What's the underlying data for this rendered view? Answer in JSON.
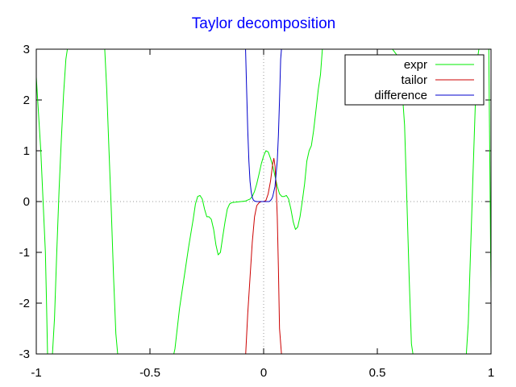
{
  "chart_data": {
    "type": "line",
    "title": "Taylor decomposition",
    "xlabel": "",
    "ylabel": "",
    "xlim": [
      -1,
      1
    ],
    "ylim": [
      -3,
      3
    ],
    "x_ticks": [
      -1,
      -0.5,
      0,
      0.5,
      1
    ],
    "x_tick_labels": [
      "-1",
      "-0.5",
      "0",
      "0.5",
      "1"
    ],
    "y_ticks": [
      -3,
      -2,
      -1,
      0,
      1,
      2,
      3
    ],
    "y_tick_labels": [
      "-3",
      "-2",
      "-1",
      "0",
      "1",
      "2",
      "3"
    ],
    "zero_axes": "dotted",
    "legend_position": "top-right",
    "series": [
      {
        "name": "expr",
        "color": "#00ee00",
        "x": [
          -1.0,
          -0.98,
          -0.96,
          -0.955,
          -0.95,
          -0.94,
          -0.93,
          -0.92,
          -0.91,
          -0.9,
          -0.89,
          -0.88,
          -0.87,
          -0.86,
          -0.84,
          -0.82,
          -0.8,
          -0.78,
          -0.76,
          -0.74,
          -0.72,
          -0.7,
          -0.69,
          -0.68,
          -0.67,
          -0.66,
          -0.65,
          -0.64,
          -0.6,
          -0.5,
          -0.4,
          -0.39,
          -0.37,
          -0.35,
          -0.33,
          -0.31,
          -0.3,
          -0.29,
          -0.28,
          -0.27,
          -0.26,
          -0.25,
          -0.24,
          -0.23,
          -0.22,
          -0.21,
          -0.2,
          -0.19,
          -0.18,
          -0.17,
          -0.16,
          -0.15,
          -0.14,
          -0.12,
          -0.1,
          -0.08,
          -0.07,
          -0.06,
          -0.05,
          -0.04,
          -0.03,
          -0.02,
          -0.01,
          0.0,
          0.01,
          0.02,
          0.03,
          0.04,
          0.05,
          0.06,
          0.07,
          0.08,
          0.09,
          0.1,
          0.11,
          0.12,
          0.13,
          0.14,
          0.15,
          0.16,
          0.17,
          0.18,
          0.19,
          0.2,
          0.21,
          0.22,
          0.23,
          0.24,
          0.25,
          0.26,
          0.27,
          0.28,
          0.29,
          0.3,
          0.31,
          0.32,
          0.33,
          0.34,
          0.36,
          0.38,
          0.4,
          0.45,
          0.5,
          0.55,
          0.6,
          0.62,
          0.63,
          0.64,
          0.65,
          0.66,
          0.7,
          0.8,
          0.89,
          0.9,
          0.91,
          0.92,
          0.93,
          0.94,
          0.95,
          0.96,
          0.97,
          0.98,
          0.99,
          1.0
        ],
        "y": [
          2.45,
          1.0,
          -1.0,
          -2.0,
          -3.1,
          -3.1,
          -3.1,
          -2.3,
          -1.0,
          0.2,
          1.2,
          2.1,
          2.8,
          3.1,
          3.1,
          3.1,
          3.1,
          3.1,
          3.1,
          3.1,
          3.1,
          3.1,
          2.2,
          1.0,
          -0.2,
          -1.5,
          -2.6,
          -3.1,
          -3.1,
          -3.1,
          -3.1,
          -2.9,
          -2.1,
          -1.5,
          -0.9,
          -0.35,
          -0.05,
          0.1,
          0.12,
          0.05,
          -0.15,
          -0.3,
          -0.3,
          -0.35,
          -0.55,
          -0.85,
          -1.05,
          -1.0,
          -0.7,
          -0.4,
          -0.15,
          -0.05,
          -0.02,
          -0.01,
          0.0,
          0.01,
          0.03,
          0.05,
          0.1,
          0.2,
          0.35,
          0.55,
          0.75,
          0.9,
          1.0,
          0.98,
          0.85,
          0.7,
          0.5,
          0.3,
          0.15,
          0.1,
          0.1,
          0.12,
          0.05,
          -0.15,
          -0.4,
          -0.55,
          -0.5,
          -0.3,
          0.0,
          0.35,
          0.8,
          1.0,
          1.1,
          1.4,
          1.8,
          2.2,
          2.5,
          3.1,
          3.1,
          3.1,
          3.1,
          3.1,
          3.1,
          3.1,
          3.1,
          3.1,
          3.1,
          3.1,
          3.1,
          3.1,
          3.1,
          3.1,
          2.8,
          1.5,
          0.0,
          -1.5,
          -2.8,
          -3.1,
          -3.1,
          -3.1,
          -3.1,
          -2.4,
          -1.0,
          0.4,
          1.8,
          2.8,
          3.1,
          3.1,
          3.1,
          3.1,
          3.1,
          -1.8
        ]
      },
      {
        "name": "tailor",
        "color": "#cc0000",
        "x": [
          -0.08,
          -0.07,
          -0.06,
          -0.05,
          -0.04,
          -0.03,
          -0.02,
          -0.01,
          0.0,
          0.01,
          0.02,
          0.03,
          0.04,
          0.045,
          0.05,
          0.055,
          0.06,
          0.065,
          0.07,
          0.08
        ],
        "y": [
          -3.1,
          -2.2,
          -1.5,
          -0.8,
          -0.3,
          -0.08,
          -0.02,
          0.0,
          0.0,
          0.02,
          0.15,
          0.4,
          0.75,
          0.85,
          0.7,
          0.3,
          -0.3,
          -1.3,
          -2.5,
          -3.1
        ]
      },
      {
        "name": "difference",
        "color": "#0000cc",
        "x": [
          -0.08,
          -0.075,
          -0.07,
          -0.065,
          -0.06,
          -0.055,
          -0.05,
          -0.045,
          -0.04,
          -0.03,
          -0.02,
          -0.01,
          0.0,
          0.01,
          0.02,
          0.025,
          0.03,
          0.035,
          0.04,
          0.05,
          0.06,
          0.065,
          0.07,
          0.075,
          0.08
        ],
        "y": [
          3.1,
          2.2,
          1.4,
          0.8,
          0.4,
          0.2,
          0.08,
          0.03,
          0.01,
          0.0,
          0.0,
          0.0,
          0.0,
          0.0,
          0.0,
          0.0,
          0.02,
          0.05,
          0.1,
          0.3,
          0.8,
          1.3,
          2.0,
          2.8,
          3.1
        ]
      }
    ]
  }
}
